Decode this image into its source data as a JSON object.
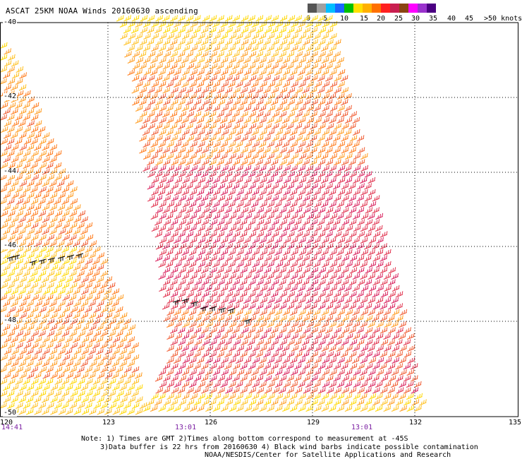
{
  "title": "ASCAT 25KM NOAA Winds 20160630 ascending",
  "colorbar": {
    "labels": [
      "0",
      "5",
      "10",
      "15",
      "20",
      "25",
      "30",
      "35",
      "40",
      "45",
      ">50 knots"
    ],
    "colors": [
      "#555555",
      "#a0a0a0",
      "#00bfff",
      "#1c66ff",
      "#00c000",
      "#ffe000",
      "#ffb000",
      "#ff7000",
      "#ff2020",
      "#c81e50",
      "#8b4513",
      "#ff00ff",
      "#9a32cd",
      "#4b0082"
    ]
  },
  "map": {
    "lat_labels": [
      "-40",
      "-42",
      "-44",
      "-46",
      "-48",
      "-50"
    ],
    "lon_labels": [
      "120",
      "123",
      "126",
      "129",
      "132",
      "135"
    ],
    "time_labels": [
      "14:41",
      "13:01",
      "13:01"
    ],
    "swath_colors": [
      "#ffd700",
      "#ffc020",
      "#ff9c20",
      "#ff7a1a",
      "#f05a30",
      "#e0304c",
      "#d81e5b"
    ]
  },
  "notes": {
    "line1": "Note: 1) Times are GMT 2)Times along bottom correspond to measurement at -45S",
    "line2": "3)Data buffer is 22 hrs from 20160630 4) Black wind barbs indicate possible contamination",
    "line3": "NOAA/NESDIS/Center for Satellite Applications and Research"
  }
}
